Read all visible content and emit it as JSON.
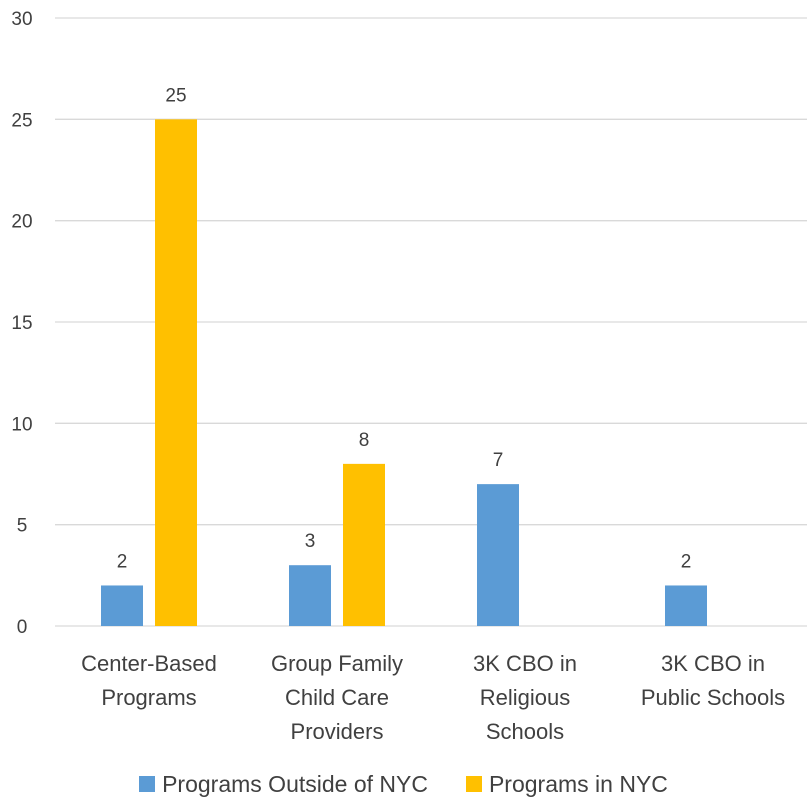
{
  "chart_data": {
    "type": "bar",
    "title": "",
    "xlabel": "",
    "ylabel": "",
    "ylim": [
      0,
      30
    ],
    "yticks": [
      0,
      5,
      10,
      15,
      20,
      25,
      30
    ],
    "grid": true,
    "legend_position": "bottom",
    "categories": [
      [
        "Center-Based",
        "Programs"
      ],
      [
        "Group Family",
        "Child Care",
        "Providers"
      ],
      [
        "3K CBO in",
        "Religious",
        "Schools"
      ],
      [
        "3K CBO in",
        "Public Schools"
      ]
    ],
    "series": [
      {
        "name": "Programs Outside of NYC",
        "color": "#5b9bd5",
        "values": [
          2,
          3,
          7,
          2
        ]
      },
      {
        "name": "Programs in NYC",
        "color": "#ffc000",
        "values": [
          25,
          8,
          null,
          null
        ]
      }
    ]
  }
}
